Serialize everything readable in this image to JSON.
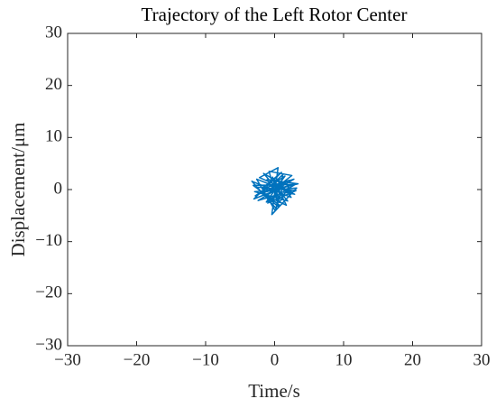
{
  "chart_data": {
    "type": "line",
    "title": "Trajectory of the Left Rotor Center",
    "x_label": "Time/s",
    "y_label": "Displacement/μm",
    "color": "#0072bd",
    "x": [
      0,
      2.1,
      -2.8,
      1.5,
      -1.2,
      3.0,
      -3.1,
      0.8,
      2.6,
      -2.2,
      0.5,
      -0.4,
      3.2,
      -2.9,
      1.9,
      -1.6,
      0.9,
      2.4,
      -3.3,
      0.2,
      1.2,
      -0.6,
      2.8,
      -2.4,
      0.4,
      -1.1,
      3.4,
      -2.0,
      1.7,
      -0.3,
      0.7,
      2.2,
      -3.0,
      1.0,
      -1.8,
      2.9,
      -2.6,
      0.1,
      1.4,
      -1.4,
      2.5,
      -0.8,
      0.6,
      -2.7,
      3.1,
      -1.0,
      1.8,
      -0.2,
      0.3,
      0
    ],
    "values": [
      0,
      1.8,
      -1.2,
      2.6,
      -2.4,
      1.0,
      0.8,
      -3.1,
      -0.5,
      2.3,
      4.2,
      -4.8,
      0.3,
      -0.4,
      -2.2,
      3.1,
      1.2,
      -1.5,
      1.6,
      -3.6,
      2.9,
      0.6,
      2.0,
      -2.1,
      -1.0,
      1.9,
      1.1,
      -0.7,
      -3.0,
      2.4,
      -2.5,
      0.9,
      -1.8,
      3.3,
      0.2,
      -0.9,
      2.0,
      -4.1,
      1.4,
      -1.3,
      2.7,
      3.5,
      -3.4,
      0.5,
      -0.2,
      -2.6,
      1.7,
      0.8,
      -1.6,
      0
    ],
    "xlim": [
      -30,
      30
    ],
    "xticks": [
      {
        "value": -30,
        "label": "−30"
      },
      {
        "value": -20,
        "label": "−20"
      },
      {
        "value": -10,
        "label": "−10"
      },
      0,
      10,
      20,
      30
    ],
    "ylim": [
      -30,
      30
    ],
    "yticks": [
      {
        "value": -30,
        "label": "−30"
      },
      {
        "value": -20,
        "label": "−20"
      },
      {
        "value": -10,
        "label": "−10"
      },
      0,
      10,
      20,
      30
    ],
    "grid": false
  }
}
